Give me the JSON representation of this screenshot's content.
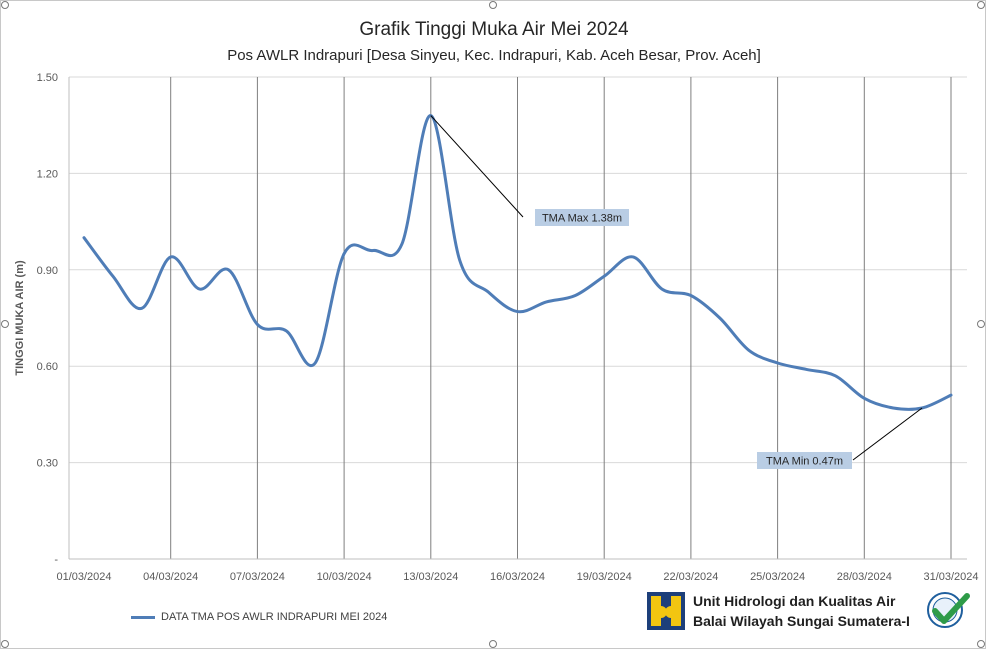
{
  "title": "Grafik Tinggi Muka Air Mei 2024",
  "subtitle": "Pos AWLR Indrapuri [Desa Sinyeu, Kec. Indrapuri, Kab. Aceh Besar, Prov. Aceh]",
  "legend_label": "DATA TMA POS AWLR INDRAPURI MEI 2024",
  "org_line1": "Unit Hidrologi dan Kualitas Air",
  "org_line2": "Balai Wilayah Sungai Sumatera-I",
  "colors": {
    "series": "#4f7db7",
    "annotation_bg": "#b9cde4",
    "logo_yellow": "#f2c511",
    "cert_green": "#2e9b48"
  },
  "chart_data": {
    "type": "line",
    "title": "Grafik Tinggi Muka Air Mei 2024",
    "subtitle": "Pos AWLR Indrapuri [Desa Sinyeu, Kec. Indrapuri, Kab. Aceh Besar, Prov. Aceh]",
    "xlabel": "",
    "ylabel": "TINGGI MUKA AIR (m)",
    "ylim": [
      0,
      1.5
    ],
    "yticks": [
      0,
      0.3,
      0.6,
      0.9,
      1.2,
      1.5
    ],
    "ytick_labels": [
      "-",
      "0.30",
      "0.60",
      "0.90",
      "1.20",
      "1.50"
    ],
    "xlim": [
      "01/03/2024",
      "31/03/2024"
    ],
    "xtick_labels": [
      "01/03/2024",
      "04/03/2024",
      "07/03/2024",
      "10/03/2024",
      "13/03/2024",
      "16/03/2024",
      "19/03/2024",
      "22/03/2024",
      "25/03/2024",
      "28/03/2024",
      "31/03/2024"
    ],
    "grid": true,
    "legend_position": "bottom-left",
    "series": [
      {
        "name": "DATA TMA POS AWLR INDRAPURI MEI 2024",
        "x": [
          "01/03/2024",
          "02/03/2024",
          "03/03/2024",
          "04/03/2024",
          "05/03/2024",
          "06/03/2024",
          "07/03/2024",
          "08/03/2024",
          "09/03/2024",
          "10/03/2024",
          "11/03/2024",
          "12/03/2024",
          "13/03/2024",
          "14/03/2024",
          "15/03/2024",
          "16/03/2024",
          "17/03/2024",
          "18/03/2024",
          "19/03/2024",
          "20/03/2024",
          "21/03/2024",
          "22/03/2024",
          "23/03/2024",
          "24/03/2024",
          "25/03/2024",
          "26/03/2024",
          "27/03/2024",
          "28/03/2024",
          "29/03/2024",
          "30/03/2024",
          "31/03/2024"
        ],
        "values": [
          1.0,
          0.88,
          0.78,
          0.94,
          0.84,
          0.9,
          0.73,
          0.71,
          0.61,
          0.95,
          0.96,
          0.98,
          1.38,
          0.93,
          0.83,
          0.77,
          0.8,
          0.82,
          0.88,
          0.94,
          0.84,
          0.82,
          0.75,
          0.65,
          0.61,
          0.59,
          0.57,
          0.5,
          0.47,
          0.47,
          0.51
        ]
      }
    ],
    "annotations": [
      {
        "text": "TMA Max 1.38m",
        "x": "13/03/2024",
        "y": 1.38
      },
      {
        "text": "TMA Min 0.47m",
        "x": "30/03/2024",
        "y": 0.47
      }
    ]
  }
}
